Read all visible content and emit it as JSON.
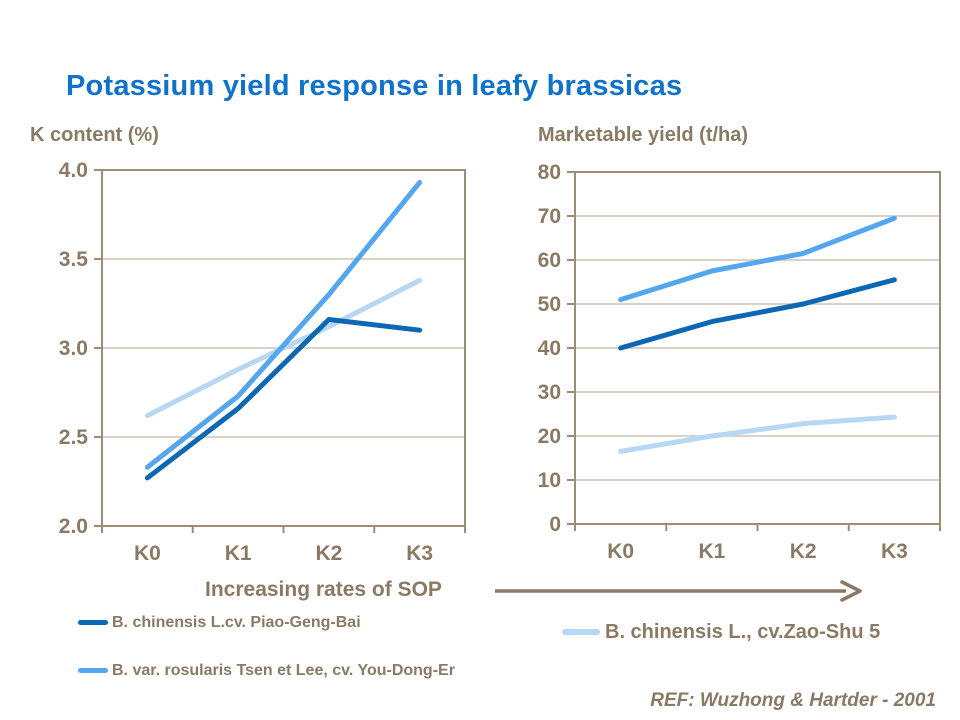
{
  "title": "Potassium yield response in leafy brassicas",
  "xaxis_annotation": "Increasing rates of SOP",
  "reference": "REF: Wuzhong & Hartder - 2001",
  "colors": {
    "title_blue": "#0F73CB",
    "text_brown": "#8A7A63",
    "axis_brown": "#9C8D76",
    "gridline_tan": "#CDC3B0",
    "series_dark": "#0D68B4",
    "series_medium": "#54A6EF",
    "series_light": "#B7D8F4"
  },
  "legend": {
    "left": [
      {
        "label": "B. chinensis L.cv. Piao-Geng-Bai",
        "color": "series_dark"
      },
      {
        "label": "B. var. rosularis Tsen et Lee, cv. You-Dong-Er",
        "color": "series_medium"
      }
    ],
    "right": [
      {
        "label": "B. chinensis L., cv.Zao-Shu 5",
        "color": "series_light"
      }
    ]
  },
  "chart_data": [
    {
      "type": "line",
      "title": "K content (%)",
      "categories": [
        "K0",
        "K1",
        "K2",
        "K3"
      ],
      "xlabel": "Increasing rates of SOP",
      "ylabel": "K content (%)",
      "ylim": [
        2.0,
        4.0
      ],
      "grid": true,
      "legend_position": "below",
      "ytick_values": [
        4.0,
        3.5,
        3.0,
        2.5,
        2.0
      ],
      "ytick_labels": [
        "4.0",
        "3.5",
        "3.0",
        "2.5",
        "2.0"
      ],
      "series": [
        {
          "name": "B. chinensis L.cv. Piao-Geng-Bai",
          "color": "series_dark",
          "values": [
            2.27,
            2.66,
            3.16,
            3.1
          ]
        },
        {
          "name": "B. var. rosularis Tsen et Lee, cv. You-Dong-Er",
          "color": "series_medium",
          "values": [
            2.33,
            2.73,
            3.3,
            3.93
          ]
        },
        {
          "name": "B. chinensis L., cv.Zao-Shu 5",
          "color": "series_light",
          "values": [
            2.62,
            2.88,
            3.12,
            3.38
          ]
        }
      ]
    },
    {
      "type": "line",
      "title": "Marketable yield (t/ha)",
      "categories": [
        "K0",
        "K1",
        "K2",
        "K3"
      ],
      "xlabel": "Increasing rates of SOP",
      "ylabel": "Marketable yield (t/ha)",
      "ylim": [
        0,
        80
      ],
      "grid": true,
      "legend_position": "below",
      "ytick_values": [
        80,
        70,
        60,
        50,
        40,
        30,
        20,
        10,
        0
      ],
      "ytick_labels": [
        "80",
        "70",
        "60",
        "50",
        "40",
        "30",
        "20",
        "10",
        "0"
      ],
      "series": [
        {
          "name": "B. chinensis L.cv. Piao-Geng-Bai",
          "color": "series_dark",
          "values": [
            40,
            46,
            50,
            55.5
          ]
        },
        {
          "name": "B. var. rosularis Tsen et Lee, cv. You-Dong-Er",
          "color": "series_medium",
          "values": [
            51,
            57.5,
            61.5,
            69.5
          ]
        },
        {
          "name": "B. chinensis L., cv.Zao-Shu 5",
          "color": "series_light",
          "values": [
            16.5,
            20,
            22.8,
            24.3
          ]
        }
      ]
    }
  ]
}
